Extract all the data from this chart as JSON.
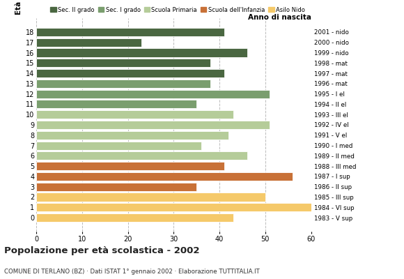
{
  "ages": [
    18,
    17,
    16,
    15,
    14,
    13,
    12,
    11,
    10,
    9,
    8,
    7,
    6,
    5,
    4,
    3,
    2,
    1,
    0
  ],
  "values": [
    41,
    23,
    46,
    38,
    41,
    38,
    51,
    35,
    43,
    51,
    42,
    36,
    46,
    41,
    56,
    35,
    50,
    60,
    43
  ],
  "right_labels": [
    "1983 - V sup",
    "1984 - VI sup",
    "1985 - III sup",
    "1986 - II sup",
    "1987 - I sup",
    "1988 - III med",
    "1989 - II med",
    "1990 - I med",
    "1991 - V el",
    "1992 - IV el",
    "1993 - III el",
    "1994 - II el",
    "1995 - I el",
    "1996 - mat",
    "1997 - mat",
    "1998 - mat",
    "1999 - nido",
    "2000 - nido",
    "2001 - nido"
  ],
  "bar_colors": [
    "#4a6741",
    "#4a6741",
    "#4a6741",
    "#4a6741",
    "#4a6741",
    "#7a9e6e",
    "#7a9e6e",
    "#7a9e6e",
    "#b5cc99",
    "#b5cc99",
    "#b5cc99",
    "#b5cc99",
    "#b5cc99",
    "#c87137",
    "#c87137",
    "#c87137",
    "#f5c96a",
    "#f5c96a",
    "#f5c96a"
  ],
  "legend_labels": [
    "Sec. II grado",
    "Sec. I grado",
    "Scuola Primaria",
    "Scuola dell'Infanzia",
    "Asilo Nido"
  ],
  "legend_colors": [
    "#4a6741",
    "#7a9e6e",
    "#b5cc99",
    "#c87137",
    "#f5c96a"
  ],
  "title": "Popolazione per età scolastica - 2002",
  "subtitle": "COMUNE DI TERLANO (BZ) · Dati ISTAT 1° gennaio 2002 · Elaborazione TUTTITALIA.IT",
  "xlabel_left": "Età",
  "xlabel_right": "Anno di nascita",
  "xlim": [
    0,
    60
  ],
  "xticks": [
    0,
    10,
    20,
    30,
    40,
    50,
    60
  ],
  "background_color": "#ffffff",
  "grid_color": "#bbbbbb"
}
